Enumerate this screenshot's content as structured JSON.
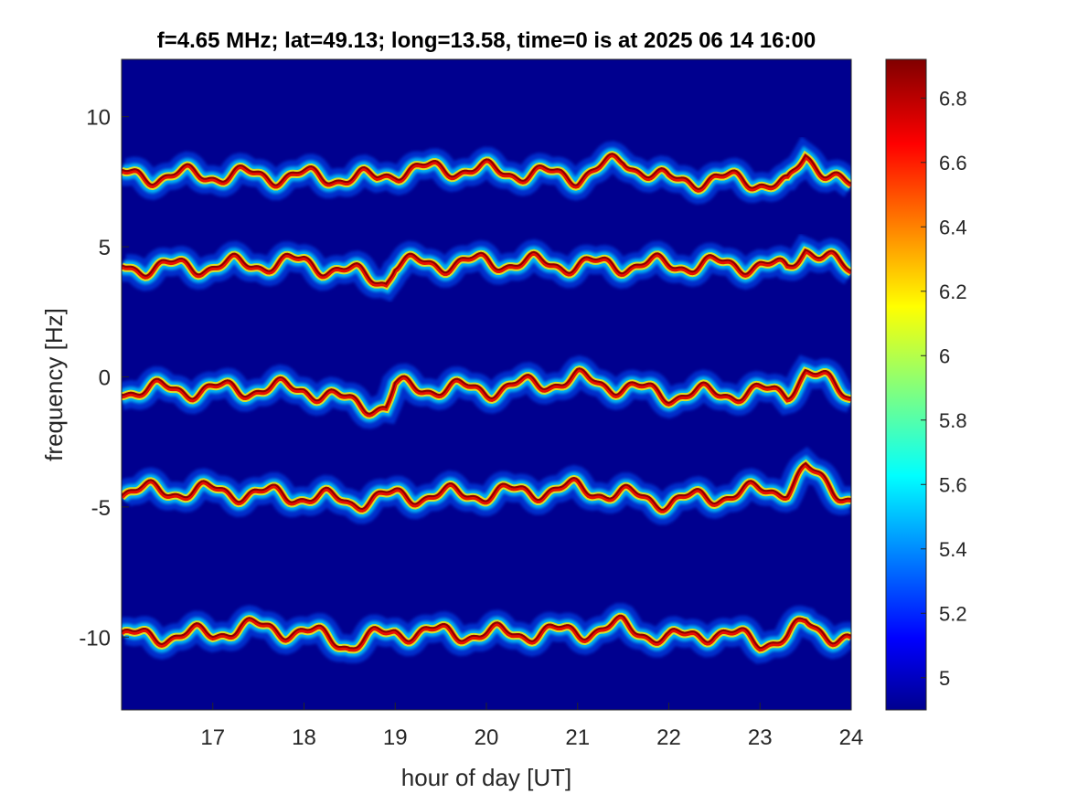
{
  "chart_data": {
    "type": "heatmap",
    "title": "f=4.65 MHz;  lat=49.13; long=13.58, time=0 is at 2025 06 14 16:00",
    "xlabel": "hour of day [UT]",
    "ylabel": "frequency [Hz]",
    "xlim": [
      16,
      24
    ],
    "ylim": [
      -12.8,
      12.2
    ],
    "x_ticks": [
      17,
      18,
      19,
      20,
      21,
      22,
      23,
      24
    ],
    "y_ticks": [
      10,
      5,
      0,
      -5,
      -10
    ],
    "colorbar": {
      "colormap": "jet",
      "range": [
        4.9,
        6.92
      ],
      "ticks": [
        6.8,
        6.6,
        6.4,
        6.2,
        6,
        5.8,
        5.6,
        5.4,
        5.2,
        5
      ]
    },
    "background_color": "#00008f",
    "grid": false,
    "traces": [
      {
        "center_hz": 7.7,
        "points": [
          [
            16.0,
            7.7
          ],
          [
            17.0,
            7.75
          ],
          [
            18.0,
            7.7
          ],
          [
            18.8,
            7.6
          ],
          [
            19.0,
            7.9
          ],
          [
            19.6,
            8.0
          ],
          [
            20.5,
            7.8
          ],
          [
            21.0,
            7.7
          ],
          [
            21.5,
            8.3
          ],
          [
            22.0,
            7.5
          ],
          [
            22.5,
            7.6
          ],
          [
            23.0,
            7.5
          ],
          [
            23.3,
            7.3
          ],
          [
            23.5,
            8.5
          ],
          [
            24.0,
            7.2
          ]
        ]
      },
      {
        "center_hz": 4.3,
        "points": [
          [
            16.0,
            4.2
          ],
          [
            17.0,
            4.25
          ],
          [
            18.0,
            4.4
          ],
          [
            18.5,
            4.0
          ],
          [
            18.9,
            3.7
          ],
          [
            19.0,
            4.3
          ],
          [
            20.0,
            4.4
          ],
          [
            21.0,
            4.3
          ],
          [
            22.0,
            4.3
          ],
          [
            23.0,
            4.3
          ],
          [
            23.3,
            4.1
          ],
          [
            23.5,
            5.0
          ],
          [
            24.0,
            4.0
          ]
        ]
      },
      {
        "center_hz": -0.5,
        "points": [
          [
            16.0,
            -0.5
          ],
          [
            17.0,
            -0.5
          ],
          [
            18.0,
            -0.45
          ],
          [
            18.4,
            -0.9
          ],
          [
            18.9,
            -1.2
          ],
          [
            19.0,
            -0.4
          ],
          [
            20.0,
            -0.5
          ],
          [
            21.0,
            -0.1
          ],
          [
            22.0,
            -0.7
          ],
          [
            23.0,
            -0.6
          ],
          [
            23.3,
            -0.6
          ],
          [
            23.5,
            0.2
          ],
          [
            24.0,
            -0.7
          ]
        ]
      },
      {
        "center_hz": -4.5,
        "points": [
          [
            16.0,
            -4.4
          ],
          [
            17.0,
            -4.4
          ],
          [
            18.0,
            -4.6
          ],
          [
            18.5,
            -4.8
          ],
          [
            19.0,
            -4.6
          ],
          [
            20.0,
            -4.5
          ],
          [
            21.0,
            -4.3
          ],
          [
            22.0,
            -4.8
          ],
          [
            23.0,
            -4.4
          ],
          [
            23.3,
            -4.3
          ],
          [
            23.5,
            -3.6
          ],
          [
            24.0,
            -4.7
          ]
        ]
      },
      {
        "center_hz": -10.0,
        "points": [
          [
            16.0,
            -10.0
          ],
          [
            17.0,
            -9.9
          ],
          [
            17.3,
            -9.6
          ],
          [
            18.0,
            -9.8
          ],
          [
            18.5,
            -10.3
          ],
          [
            19.0,
            -9.8
          ],
          [
            20.0,
            -9.9
          ],
          [
            21.0,
            -9.8
          ],
          [
            21.5,
            -9.6
          ],
          [
            22.0,
            -10.1
          ],
          [
            22.5,
            -9.8
          ],
          [
            23.0,
            -10.2
          ],
          [
            23.3,
            -10.0
          ],
          [
            23.5,
            -9.5
          ],
          [
            24.0,
            -10.2
          ]
        ]
      }
    ]
  }
}
